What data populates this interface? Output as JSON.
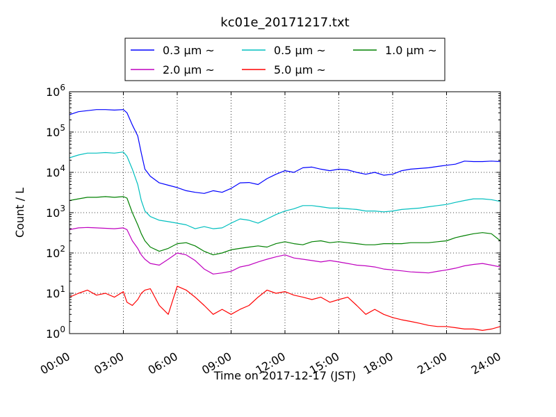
{
  "chart_data": {
    "type": "line",
    "title": "kc01e_20171217.txt",
    "xlabel": "Time on 2017-12-17 (JST)",
    "ylabel": "Count / L",
    "x_ticks": [
      "00:00",
      "03:00",
      "06:00",
      "09:00",
      "12:00",
      "15:00",
      "18:00",
      "21:00",
      "24:00"
    ],
    "y_scale": "log",
    "ylim": [
      1,
      1000000
    ],
    "xlim_hours": [
      0,
      24
    ],
    "y_ticks": [
      {
        "base": "10",
        "exp": "0"
      },
      {
        "base": "10",
        "exp": "1"
      },
      {
        "base": "10",
        "exp": "2"
      },
      {
        "base": "10",
        "exp": "3"
      },
      {
        "base": "10",
        "exp": "4"
      },
      {
        "base": "10",
        "exp": "5"
      },
      {
        "base": "10",
        "exp": "6"
      }
    ],
    "grid": true,
    "legend_position": "top-center, above plot",
    "series": [
      {
        "name": "0.3 μm ~",
        "color": "#0000ff",
        "x_hours": [
          0,
          0.5,
          1,
          1.5,
          2,
          2.5,
          3,
          3.2,
          3.5,
          3.8,
          4,
          4.2,
          4.5,
          5,
          5.5,
          6,
          6.5,
          7,
          7.5,
          8,
          8.5,
          9,
          9.5,
          10,
          10.5,
          11,
          11.5,
          12,
          12.5,
          13,
          13.5,
          14,
          14.5,
          15,
          15.5,
          16,
          16.5,
          17,
          17.5,
          18,
          18.5,
          19,
          19.5,
          20,
          20.5,
          21,
          21.5,
          22,
          22.5,
          23,
          23.5,
          24
        ],
        "y": [
          270000,
          320000,
          340000,
          360000,
          360000,
          350000,
          360000,
          300000,
          150000,
          80000,
          30000,
          12000,
          8000,
          5500,
          4800,
          4200,
          3500,
          3200,
          3000,
          3500,
          3200,
          4000,
          5500,
          5600,
          5000,
          7000,
          9000,
          11000,
          10000,
          13000,
          13500,
          12000,
          11000,
          12000,
          11500,
          10000,
          9000,
          10000,
          8500,
          9000,
          11000,
          12000,
          12500,
          13000,
          14000,
          15000,
          16000,
          19000,
          18500,
          18500,
          19000,
          18500
        ]
      },
      {
        "name": "0.5 μm ~",
        "color": "#00bfbf",
        "x_hours": [
          0,
          0.5,
          1,
          1.5,
          2,
          2.5,
          3,
          3.2,
          3.5,
          3.8,
          4,
          4.2,
          4.5,
          5,
          5.5,
          6,
          6.5,
          7,
          7.5,
          8,
          8.5,
          9,
          9.5,
          10,
          10.5,
          11,
          11.5,
          12,
          12.5,
          13,
          13.5,
          14,
          14.5,
          15,
          15.5,
          16,
          16.5,
          17,
          17.5,
          18,
          18.5,
          19,
          19.5,
          20,
          20.5,
          21,
          21.5,
          22,
          22.5,
          23,
          23.5,
          24
        ],
        "y": [
          23000,
          27000,
          30000,
          30000,
          31000,
          30000,
          32000,
          25000,
          12000,
          5000,
          2000,
          1100,
          800,
          650,
          600,
          550,
          500,
          400,
          450,
          400,
          420,
          550,
          700,
          650,
          550,
          700,
          900,
          1100,
          1250,
          1500,
          1500,
          1400,
          1300,
          1300,
          1250,
          1200,
          1100,
          1100,
          1050,
          1100,
          1200,
          1250,
          1300,
          1400,
          1500,
          1600,
          1800,
          2000,
          2200,
          2200,
          2100,
          1900
        ]
      },
      {
        "name": "1.0 μm ~",
        "color": "#008000",
        "x_hours": [
          0,
          0.5,
          1,
          1.5,
          2,
          2.5,
          3,
          3.2,
          3.5,
          3.8,
          4,
          4.2,
          4.5,
          5,
          5.5,
          6,
          6.5,
          7,
          7.5,
          8,
          8.5,
          9,
          9.5,
          10,
          10.5,
          11,
          11.5,
          12,
          12.5,
          13,
          13.5,
          14,
          14.5,
          15,
          15.5,
          16,
          16.5,
          17,
          17.5,
          18,
          18.5,
          19,
          19.5,
          20,
          20.5,
          21,
          21.5,
          22,
          22.5,
          23,
          23.5,
          24
        ],
        "y": [
          2000,
          2200,
          2400,
          2400,
          2500,
          2400,
          2500,
          2300,
          1000,
          500,
          300,
          200,
          140,
          110,
          130,
          170,
          180,
          150,
          110,
          90,
          100,
          120,
          130,
          140,
          150,
          140,
          170,
          190,
          170,
          160,
          190,
          200,
          180,
          190,
          180,
          170,
          160,
          160,
          170,
          170,
          170,
          180,
          180,
          180,
          190,
          200,
          240,
          270,
          300,
          320,
          300,
          200
        ]
      },
      {
        "name": "2.0 μm ~",
        "color": "#bf00bf",
        "x_hours": [
          0,
          0.5,
          1,
          1.5,
          2,
          2.5,
          3,
          3.2,
          3.5,
          3.8,
          4,
          4.2,
          4.5,
          5,
          5.5,
          6,
          6.5,
          7,
          7.5,
          8,
          8.5,
          9,
          9.5,
          10,
          10.5,
          11,
          11.5,
          12,
          12.5,
          13,
          13.5,
          14,
          14.5,
          15,
          15.5,
          16,
          16.5,
          17,
          17.5,
          18,
          18.5,
          19,
          19.5,
          20,
          20.5,
          21,
          21.5,
          22,
          22.5,
          23,
          23.5,
          24
        ],
        "y": [
          380,
          420,
          430,
          420,
          410,
          400,
          420,
          380,
          200,
          130,
          90,
          70,
          55,
          50,
          70,
          100,
          90,
          65,
          40,
          30,
          32,
          35,
          45,
          50,
          60,
          70,
          80,
          90,
          75,
          70,
          65,
          60,
          65,
          60,
          55,
          50,
          48,
          45,
          40,
          38,
          36,
          34,
          33,
          32,
          35,
          38,
          42,
          48,
          52,
          55,
          50,
          45
        ]
      },
      {
        "name": "5.0 μm ~",
        "color": "#ff0000",
        "x_hours": [
          0,
          0.5,
          1,
          1.5,
          2,
          2.5,
          3,
          3.2,
          3.5,
          3.8,
          4,
          4.2,
          4.5,
          5,
          5.5,
          6,
          6.5,
          7,
          7.5,
          8,
          8.5,
          9,
          9.5,
          10,
          10.5,
          11,
          11.5,
          12,
          12.5,
          13,
          13.5,
          14,
          14.5,
          15,
          15.5,
          16,
          16.5,
          17,
          17.5,
          18,
          18.5,
          19,
          19.5,
          20,
          20.5,
          21,
          21.5,
          22,
          22.5,
          23,
          23.5,
          24
        ],
        "y": [
          8,
          10,
          12,
          9,
          10,
          8,
          11,
          6,
          5,
          7,
          10,
          12,
          13,
          5,
          3,
          15,
          12,
          8,
          5,
          3,
          4,
          3,
          4,
          5,
          8,
          12,
          10,
          11,
          9,
          8,
          7,
          8,
          6,
          7,
          8,
          5,
          3,
          4,
          3,
          2.5,
          2.2,
          2,
          1.8,
          1.6,
          1.5,
          1.5,
          1.4,
          1.3,
          1.3,
          1.2,
          1.3,
          1.5
        ]
      }
    ]
  }
}
